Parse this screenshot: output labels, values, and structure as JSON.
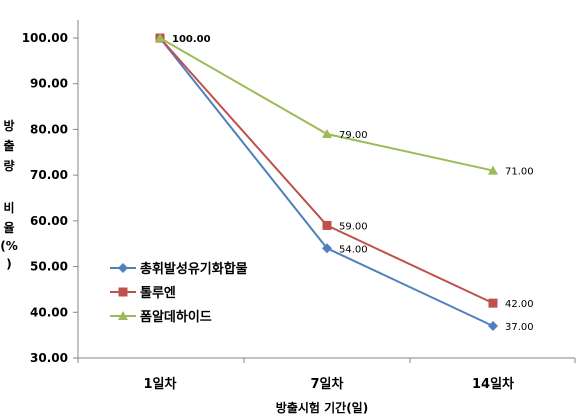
{
  "chart_data": {
    "type": "line",
    "title": "",
    "xlabel": "방출시험 기간(일)",
    "ylabel_chars": [
      "방",
      "출",
      "량",
      "",
      "비",
      "율",
      "(%",
      ")"
    ],
    "categories": [
      "1일차",
      "7일차",
      "14일차"
    ],
    "ylim": [
      30,
      100
    ],
    "yticks": [
      "30.00",
      "40.00",
      "50.00",
      "60.00",
      "70.00",
      "80.00",
      "90.00",
      "100.00"
    ],
    "ytick_values": [
      30,
      40,
      50,
      60,
      70,
      80,
      90,
      100
    ],
    "grid": false,
    "legend_position": "left-middle",
    "series": [
      {
        "name": "총휘발성유기화합물",
        "values": [
          100,
          54,
          37
        ],
        "labels": [
          "",
          "54.00",
          "37.00"
        ],
        "color": "#4f81bd",
        "marker": "diamond"
      },
      {
        "name": "톨루엔",
        "values": [
          100,
          59,
          42
        ],
        "labels": [
          "",
          "59.00",
          "42.00"
        ],
        "color": "#c0504d",
        "marker": "square"
      },
      {
        "name": "폼알데하이드",
        "values": [
          100,
          79,
          71
        ],
        "labels": [
          "100.00",
          "79.00",
          "71.00"
        ],
        "color": "#9bbb59",
        "marker": "triangle"
      }
    ]
  }
}
